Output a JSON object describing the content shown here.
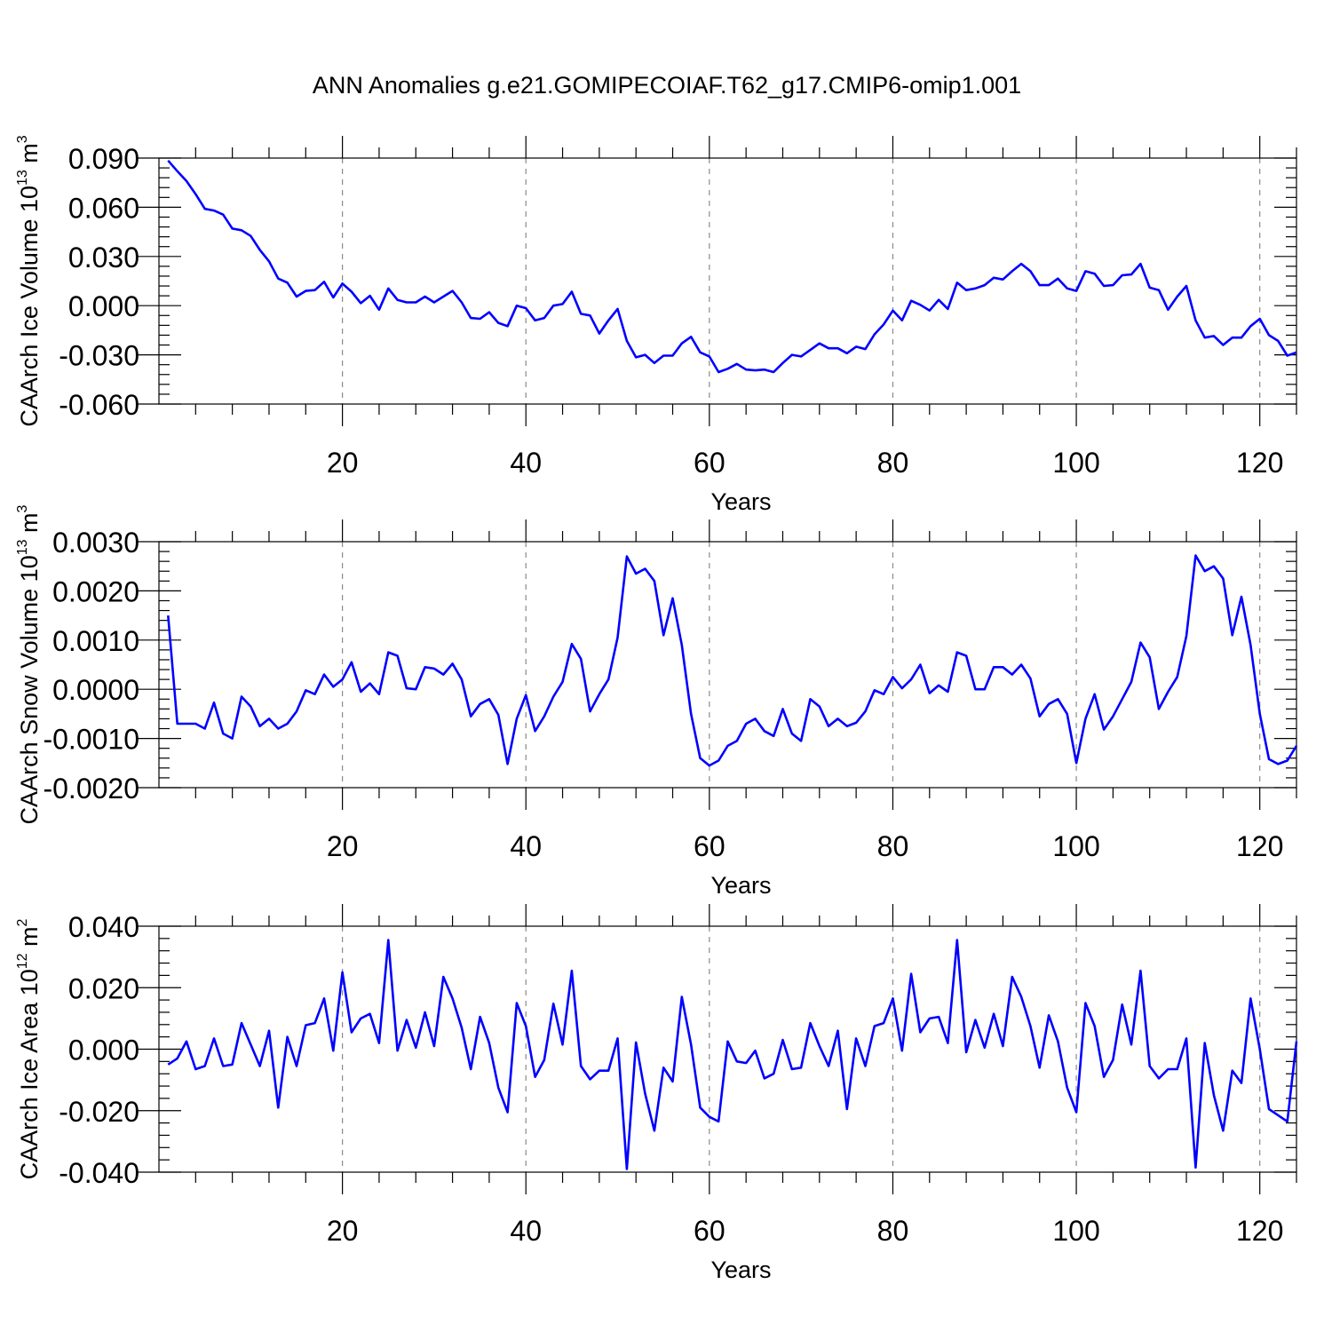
{
  "title": "ANN Anomalies g.e21.GOMIPECOIAF.T62_g17.CMIP6-omip1.001",
  "colors": {
    "line": "#0000ff",
    "grid": "#8a8a8a",
    "axis": "#000000"
  },
  "chart_data": [
    {
      "type": "line",
      "ylabel": "CAArch Ice Volume 10",
      "ylabel_exp": "13",
      "ylabel_unit": "m",
      "ylabel_unit_exp": "3",
      "xlabel": "Years",
      "xlim": [
        1,
        124
      ],
      "ylim": [
        -0.06,
        0.09
      ],
      "yticks": [
        -0.06,
        -0.03,
        0.0,
        0.03,
        0.06,
        0.09
      ],
      "ytick_labels": [
        "-0.060",
        "-0.030",
        "0.000",
        "0.030",
        "0.060",
        "0.090"
      ],
      "xticks": [
        20,
        40,
        60,
        80,
        100,
        120
      ],
      "xtick_labels": [
        "20",
        "40",
        "60",
        "80",
        "100",
        "120"
      ],
      "grid": "vertical dashed at major x ticks",
      "x_start": 1,
      "values": [
        0.0885,
        0.082,
        0.076,
        0.068,
        0.059,
        0.058,
        0.0555,
        0.047,
        0.046,
        0.0425,
        0.034,
        0.027,
        0.0165,
        0.014,
        0.0055,
        0.009,
        0.0095,
        0.0145,
        0.005,
        0.0135,
        0.0085,
        0.0015,
        0.006,
        -0.0025,
        0.0105,
        0.0035,
        0.002,
        0.002,
        0.0055,
        0.002,
        0.0055,
        0.009,
        0.002,
        -0.0075,
        -0.008,
        -0.004,
        -0.0105,
        -0.0125,
        0.0,
        -0.0015,
        -0.009,
        -0.0075,
        0.0,
        0.001,
        0.0085,
        -0.005,
        -0.006,
        -0.017,
        -0.009,
        -0.002,
        -0.0215,
        -0.0315,
        -0.03,
        -0.035,
        -0.0305,
        -0.0305,
        -0.023,
        -0.019,
        -0.0285,
        -0.031,
        -0.0405,
        -0.0385,
        -0.0355,
        -0.039,
        -0.0395,
        -0.039,
        -0.0405,
        -0.035,
        -0.03,
        -0.031,
        -0.027,
        -0.023,
        -0.026,
        -0.026,
        -0.029,
        -0.025,
        -0.0265,
        -0.0175,
        -0.0115,
        -0.003,
        -0.009,
        0.003,
        0.0005,
        -0.003,
        0.0035,
        -0.002,
        0.014,
        0.0095,
        0.0105,
        0.0125,
        0.017,
        0.016,
        0.021,
        0.0255,
        0.021,
        0.0125,
        0.0125,
        0.0165,
        0.0105,
        0.009,
        0.021,
        0.0195,
        0.012,
        0.0125,
        0.0185,
        0.019,
        0.0255,
        0.011,
        0.0095,
        -0.0025,
        0.0055,
        0.012,
        -0.009,
        -0.0195,
        -0.0185,
        -0.024,
        -0.0195,
        -0.0195,
        -0.0125,
        -0.008,
        -0.018,
        -0.0215,
        -0.0305,
        -0.0285
      ]
    },
    {
      "type": "line",
      "ylabel": "CAArch Snow Volume 10",
      "ylabel_exp": "13",
      "ylabel_unit": "m",
      "ylabel_unit_exp": "3",
      "xlabel": "Years",
      "xlim": [
        1,
        124
      ],
      "ylim": [
        -0.002,
        0.003
      ],
      "yticks": [
        -0.002,
        -0.001,
        0.0,
        0.001,
        0.002,
        0.003
      ],
      "ytick_labels": [
        "-0.0020",
        "-0.0010",
        "0.0000",
        "0.0010",
        "0.0020",
        "0.0030"
      ],
      "xticks": [
        20,
        40,
        60,
        80,
        100,
        120
      ],
      "xtick_labels": [
        "20",
        "40",
        "60",
        "80",
        "100",
        "120"
      ],
      "grid": "vertical dashed at major x ticks",
      "x_start": 1,
      "values": [
        0.0015,
        -0.0007,
        -0.0007,
        -0.0007,
        -0.0008,
        -0.00027,
        -0.0009,
        -0.001,
        -0.00015,
        -0.00035,
        -0.00075,
        -0.0006,
        -0.0008,
        -0.0007,
        -0.00045,
        -2e-05,
        -0.0001,
        0.0003,
        5e-05,
        0.0002,
        0.00055,
        -5e-05,
        0.00012,
        -0.0001,
        0.00075,
        0.00068,
        2e-05,
        0.0,
        0.00045,
        0.00042,
        0.0003,
        0.00052,
        0.0002,
        -0.00055,
        -0.0003,
        -0.0002,
        -0.00052,
        -0.00152,
        -0.0006,
        -0.00012,
        -0.00085,
        -0.00055,
        -0.00015,
        0.00015,
        0.00092,
        0.00062,
        -0.00045,
        -0.0001,
        0.0002,
        0.00105,
        0.0027,
        0.00235,
        0.00245,
        0.0022,
        0.0011,
        0.00185,
        0.0009,
        -0.0005,
        -0.0014,
        -0.00155,
        -0.00145,
        -0.00115,
        -0.00105,
        -0.0007,
        -0.0006,
        -0.00085,
        -0.00095,
        -0.0004,
        -0.0009,
        -0.00105,
        -0.0002,
        -0.00035,
        -0.00075,
        -0.0006,
        -0.00075,
        -0.00068,
        -0.00045,
        -2e-05,
        -0.0001,
        0.00025,
        2e-05,
        0.0002,
        0.0005,
        -8e-05,
        8e-05,
        -5e-05,
        0.00075,
        0.00068,
        0.0,
        0.0,
        0.00045,
        0.00045,
        0.0003,
        0.0005,
        0.00022,
        -0.00055,
        -0.0003,
        -0.0002,
        -0.0005,
        -0.0015,
        -0.0006,
        -0.0001,
        -0.00082,
        -0.00055,
        -0.0002,
        0.00015,
        0.00095,
        0.00065,
        -0.0004,
        -5e-05,
        0.00025,
        0.00108,
        0.00272,
        0.0024,
        0.0025,
        0.00225,
        0.0011,
        0.00188,
        0.0009,
        -0.0005,
        -0.00142,
        -0.00152,
        -0.00145,
        -0.00115
      ]
    },
    {
      "type": "line",
      "ylabel": "CAArch Ice Area 10",
      "ylabel_exp": "12",
      "ylabel_unit": "m",
      "ylabel_unit_exp": "2",
      "xlabel": "Years",
      "xlim": [
        1,
        124
      ],
      "ylim": [
        -0.04,
        0.04
      ],
      "yticks": [
        -0.04,
        -0.02,
        0.0,
        0.02,
        0.04
      ],
      "ytick_labels": [
        "-0.040",
        "-0.020",
        "0.000",
        "0.020",
        "0.040"
      ],
      "xticks": [
        20,
        40,
        60,
        80,
        100,
        120
      ],
      "xtick_labels": [
        "20",
        "40",
        "60",
        "80",
        "100",
        "120"
      ],
      "grid": "vertical dashed at major x ticks",
      "x_start": 1,
      "values": [
        -0.005,
        -0.003,
        0.0025,
        -0.0065,
        -0.0055,
        0.0035,
        -0.0055,
        -0.005,
        0.0085,
        0.0015,
        -0.0055,
        0.006,
        -0.019,
        0.004,
        -0.0055,
        0.0078,
        0.0085,
        0.0165,
        -0.0005,
        0.025,
        0.0055,
        0.01,
        0.0115,
        0.002,
        0.0355,
        -0.0005,
        0.0095,
        0.0005,
        0.012,
        0.001,
        0.0235,
        0.0165,
        0.007,
        -0.0065,
        0.0105,
        0.002,
        -0.0125,
        -0.0205,
        0.015,
        0.0075,
        -0.009,
        -0.0035,
        0.0148,
        0.0015,
        0.0255,
        -0.0055,
        -0.0098,
        -0.007,
        -0.007,
        0.0035,
        -0.039,
        0.0022,
        -0.0145,
        -0.0265,
        -0.006,
        -0.0105,
        0.017,
        0.0015,
        -0.019,
        -0.022,
        -0.0235,
        0.0025,
        -0.004,
        -0.0045,
        -0.0005,
        -0.0095,
        -0.008,
        0.003,
        -0.0065,
        -0.006,
        0.0085,
        0.001,
        -0.0055,
        0.006,
        -0.0195,
        0.0035,
        -0.0055,
        0.0075,
        0.0085,
        0.0165,
        -0.0005,
        0.0245,
        0.0055,
        0.01,
        0.0105,
        0.002,
        0.0355,
        -0.001,
        0.0095,
        0.0005,
        0.0115,
        0.001,
        0.0235,
        0.017,
        0.0075,
        -0.006,
        0.011,
        0.0025,
        -0.0125,
        -0.0205,
        0.015,
        0.0075,
        -0.009,
        -0.0035,
        0.0145,
        0.0015,
        0.0255,
        -0.0055,
        -0.0095,
        -0.0065,
        -0.0065,
        0.0035,
        -0.0385,
        0.002,
        -0.015,
        -0.0265,
        -0.007,
        -0.011,
        0.0165,
        0.0,
        -0.0195,
        -0.0215,
        -0.0235,
        0.0025
      ]
    }
  ]
}
